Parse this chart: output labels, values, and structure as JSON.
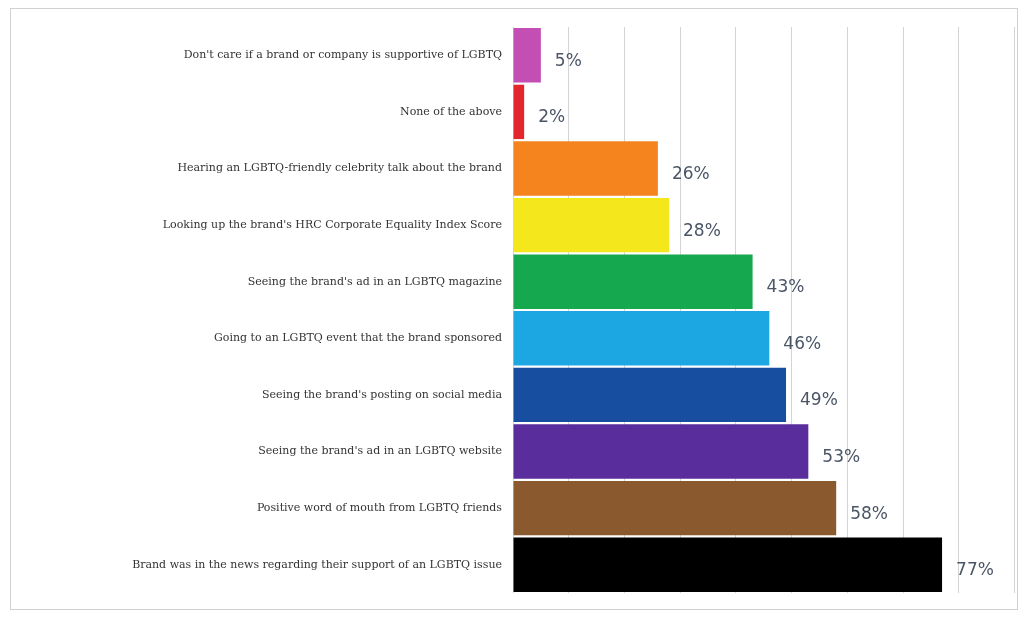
{
  "chart_data": {
    "type": "bar",
    "orientation": "horizontal",
    "categories": [
      "Don't care if a brand or company is supportive of LGBTQ",
      "None of the above",
      "Hearing an LGBTQ-friendly celebrity talk about the brand",
      "Looking up the brand's HRC Corporate Equality Index Score",
      "Seeing the brand's ad in an LGBTQ magazine",
      "Going to an LGBTQ event that the brand sponsored",
      "Seeing the brand's posting on social media",
      "Seeing the brand's ad in an LGBTQ website",
      "Positive word of mouth from LGBTQ friends",
      "Brand was in the news regarding their support of an LGBTQ issue"
    ],
    "values": [
      5,
      2,
      26,
      28,
      43,
      46,
      49,
      53,
      58,
      77
    ],
    "colors": [
      "#c44fb4",
      "#e3262b",
      "#f5841f",
      "#f4e81c",
      "#16a84f",
      "#1ca6e2",
      "#174ea0",
      "#5a2d9c",
      "#8a5a2e",
      "#000000"
    ],
    "value_labels": [
      "5%",
      "2%",
      "26%",
      "28%",
      "43%",
      "46%",
      "49%",
      "53%",
      "58%",
      "77%"
    ],
    "tick_labels": "y",
    "grid": "x"
  }
}
